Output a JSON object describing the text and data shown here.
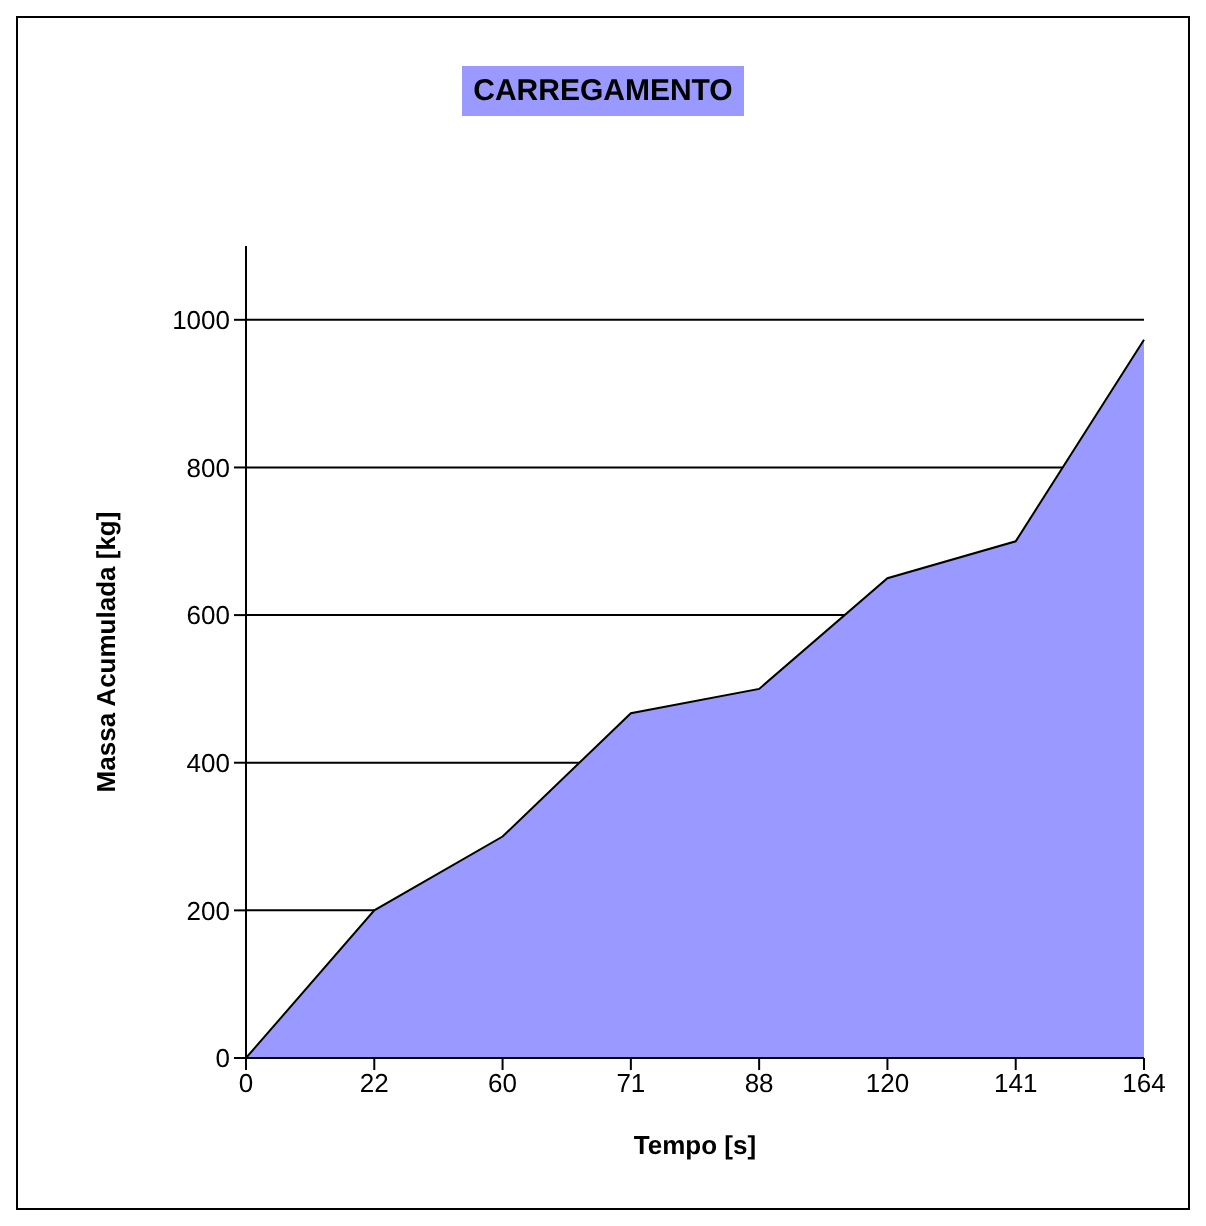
{
  "chart_data": {
    "type": "area",
    "title": "CARREGAMENTO",
    "xlabel": "Tempo [s]",
    "ylabel": "Massa Acumulada [kg]",
    "categories": [
      "0",
      "22",
      "60",
      "71",
      "88",
      "120",
      "141",
      "164"
    ],
    "series": [
      {
        "color": "#9999ff",
        "values": [
          0,
          200,
          300,
          467,
          500,
          650,
          700,
          973
        ]
      }
    ],
    "ylim": [
      0,
      1100
    ],
    "yticks": [
      0,
      200,
      400,
      600,
      800,
      1000
    ],
    "grid": "y"
  }
}
